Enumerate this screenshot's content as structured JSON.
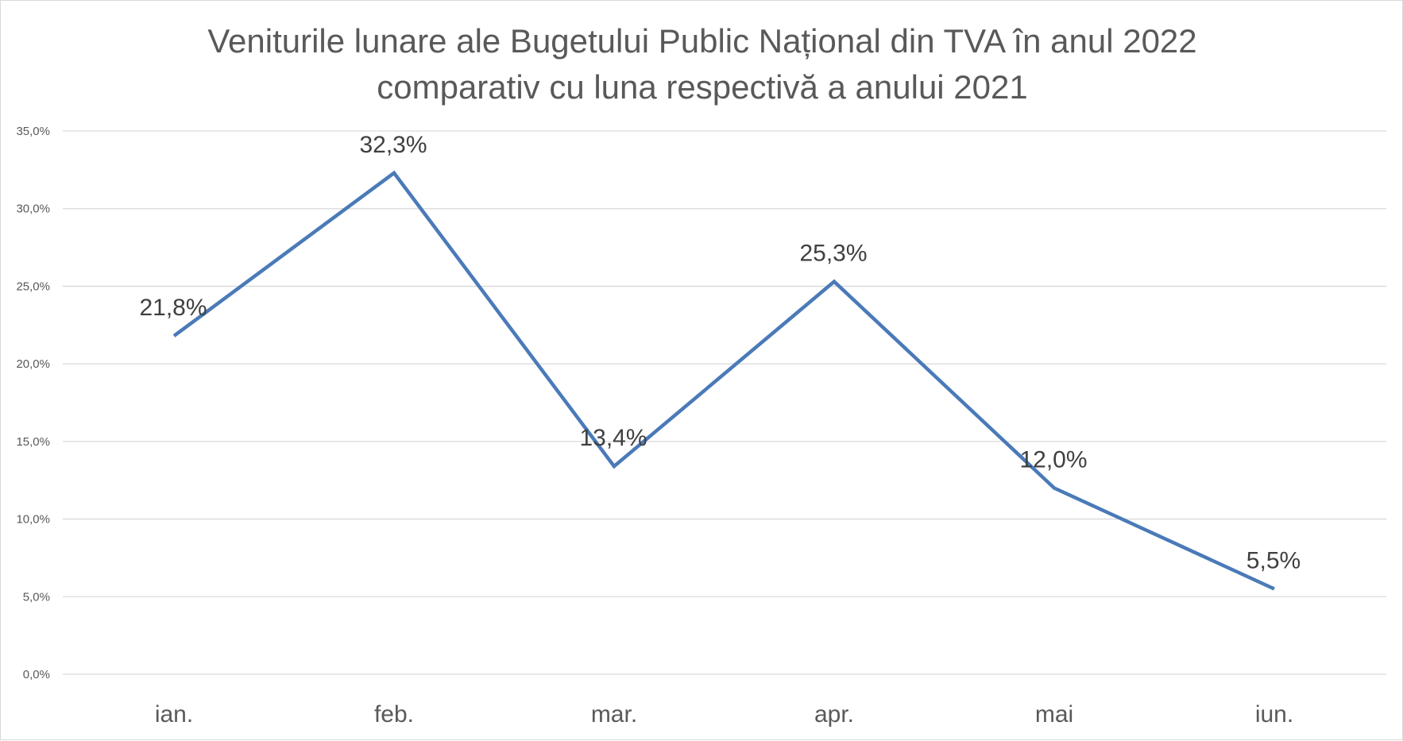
{
  "chart_data": {
    "type": "line",
    "title_lines": [
      "Veniturile lunare ale Bugetului Public Național din TVA în anul 2022",
      "comparativ cu luna respectivă a anului 2021"
    ],
    "categories": [
      "ian.",
      "feb.",
      "mar.",
      "apr.",
      "mai",
      "iun."
    ],
    "series": [
      {
        "values": [
          21.8,
          32.3,
          13.4,
          25.3,
          12.0,
          5.5
        ],
        "data_labels": [
          "21,8%",
          "32,3%",
          "13,4%",
          "25,3%",
          "12,0%",
          "5,5%"
        ],
        "color": "#4a7ab8"
      }
    ],
    "ylim": [
      0,
      35
    ],
    "y_ticks": [
      0,
      5,
      10,
      15,
      20,
      25,
      30,
      35
    ],
    "y_tick_labels": [
      "0,0%",
      "5,0%",
      "10,0%",
      "15,0%",
      "20,0%",
      "25,0%",
      "30,0%",
      "35,0%"
    ],
    "grid": true,
    "legend": "none",
    "colors": {
      "line": "#4a7ab8",
      "grid": "#d9d9d9",
      "text": "#595959"
    }
  }
}
